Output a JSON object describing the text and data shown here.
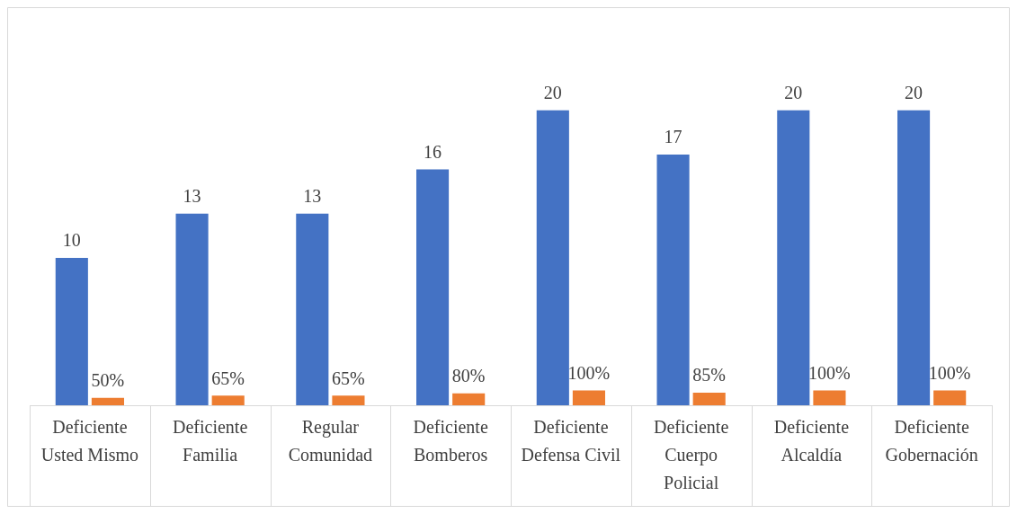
{
  "chart_data": {
    "type": "bar",
    "categories": [
      "Deficiente\nUsted Mismo",
      "Deficiente\nFamilia",
      "Regular\nComunidad",
      "Deficiente\nBomberos",
      "Deficiente\nDefensa Civil",
      "Deficiente\nCuerpo\nPolicial",
      "Deficiente\nAlcaldía",
      "Deficiente\nGobernación"
    ],
    "series": [
      {
        "color": "#4472c4",
        "values": [
          10,
          13,
          13,
          16,
          20,
          17,
          20,
          20
        ],
        "value_labels": [
          "10",
          "13",
          "13",
          "16",
          "20",
          "17",
          "20",
          "20"
        ]
      },
      {
        "color": "#ed7d31",
        "axis": "y2",
        "values": [
          50,
          65,
          65,
          80,
          100,
          85,
          100,
          100
        ],
        "value_labels": [
          "50%",
          "65%",
          "65%",
          "80%",
          "100%",
          "85%",
          "100%",
          "100%"
        ]
      }
    ],
    "ylim": [
      0,
      27
    ],
    "y2lim": [
      0,
      2700
    ],
    "tick_labels": "x",
    "grid": false,
    "legend": false
  }
}
